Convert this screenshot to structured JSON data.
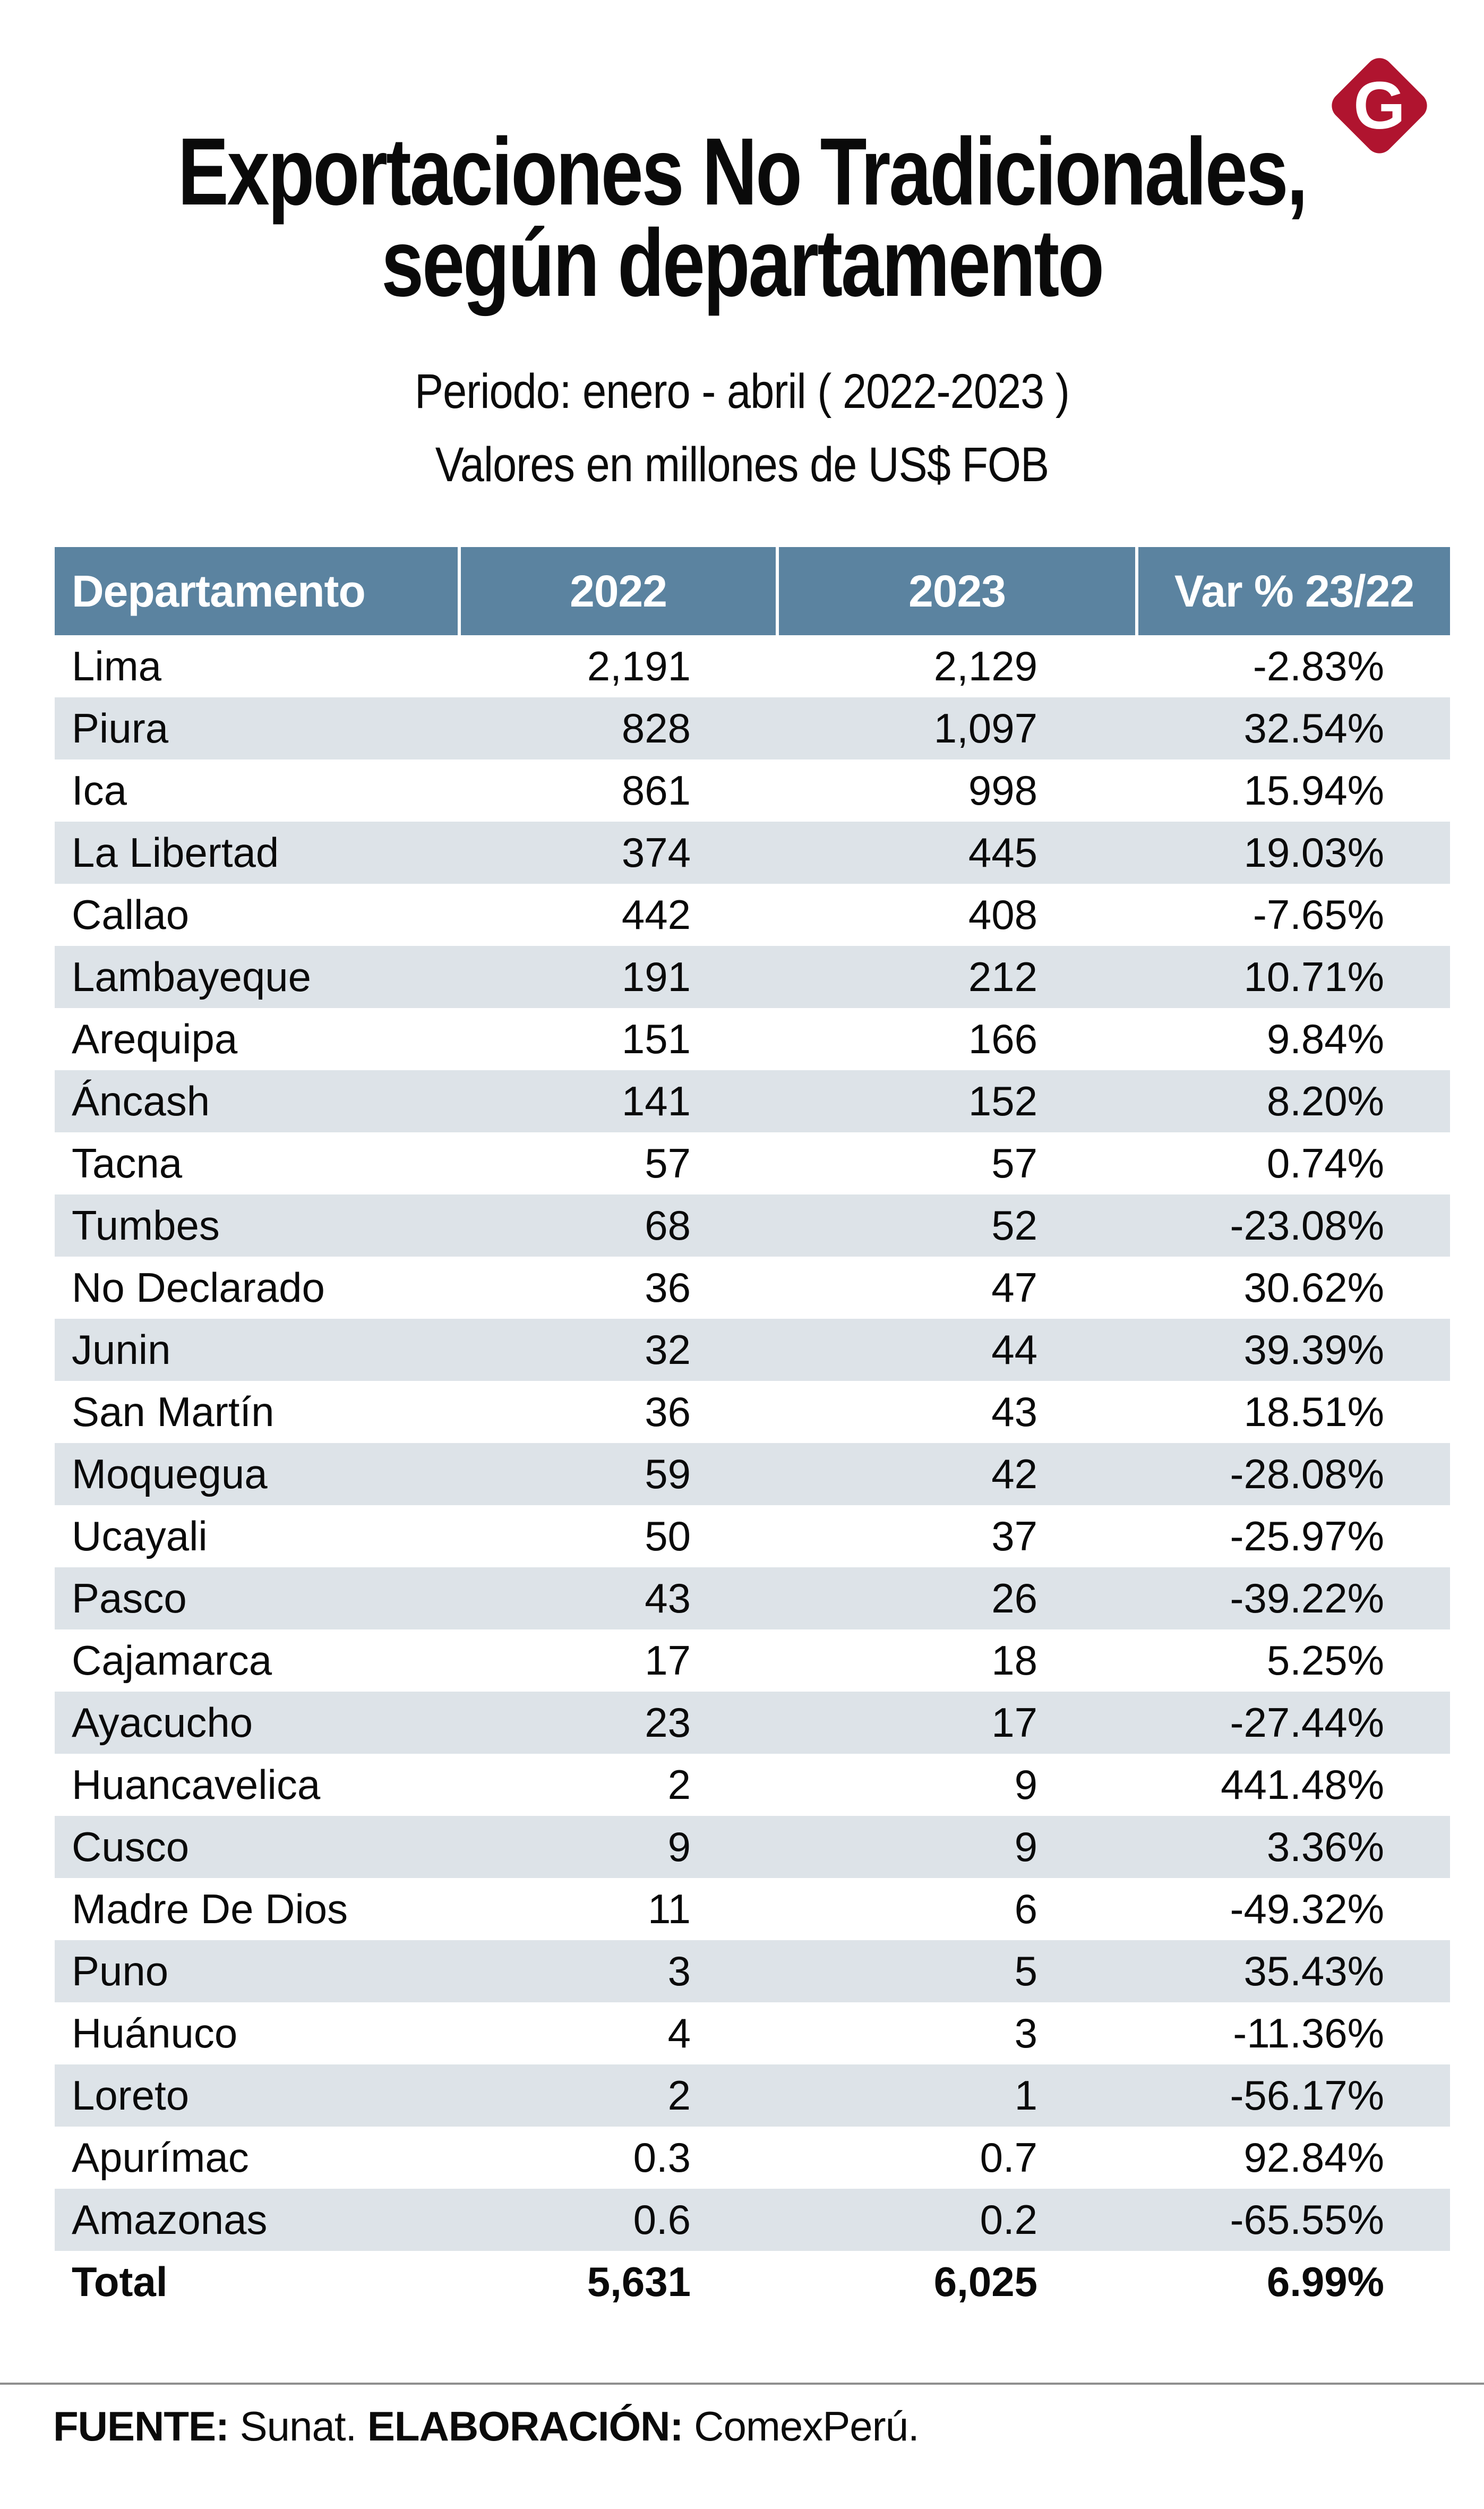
{
  "logo": {
    "letter": "G"
  },
  "title": {
    "line1": "Exportaciones No Tradicionales,",
    "line2": "según departamento"
  },
  "subtitle": {
    "line1": "Periodo: enero - abril ( 2022-2023 )",
    "line2": "Valores en millones de US$ FOB"
  },
  "colors": {
    "header_bg": "#5b83a0",
    "stripe": "#dde3e8",
    "logo_red": "#b0142f",
    "divider": "#8f8f8f"
  },
  "table": {
    "headers": [
      "Departamento",
      "2022",
      "2023",
      "Var % 23/22"
    ],
    "rows": [
      [
        "Lima",
        "2,191",
        "2,129",
        "-2.83%"
      ],
      [
        "Piura",
        "828",
        "1,097",
        "32.54%"
      ],
      [
        "Ica",
        "861",
        "998",
        "15.94%"
      ],
      [
        "La Libertad",
        "374",
        "445",
        "19.03%"
      ],
      [
        "Callao",
        "442",
        "408",
        "-7.65%"
      ],
      [
        "Lambayeque",
        "191",
        "212",
        "10.71%"
      ],
      [
        "Arequipa",
        "151",
        "166",
        "9.84%"
      ],
      [
        "Áncash",
        "141",
        "152",
        "8.20%"
      ],
      [
        "Tacna",
        "57",
        "57",
        "0.74%"
      ],
      [
        "Tumbes",
        "68",
        "52",
        "-23.08%"
      ],
      [
        "No Declarado",
        "36",
        "47",
        "30.62%"
      ],
      [
        "Junin",
        "32",
        "44",
        "39.39%"
      ],
      [
        "San Martín",
        "36",
        "43",
        "18.51%"
      ],
      [
        "Moquegua",
        "59",
        "42",
        "-28.08%"
      ],
      [
        "Ucayali",
        "50",
        "37",
        "-25.97%"
      ],
      [
        "Pasco",
        "43",
        "26",
        "-39.22%"
      ],
      [
        "Cajamarca",
        "17",
        "18",
        "5.25%"
      ],
      [
        "Ayacucho",
        "23",
        "17",
        "-27.44%"
      ],
      [
        "Huancavelica",
        "2",
        "9",
        "441.48%"
      ],
      [
        "Cusco",
        "9",
        "9",
        "3.36%"
      ],
      [
        "Madre De Dios",
        "11",
        "6",
        "-49.32%"
      ],
      [
        "Puno",
        "3",
        "5",
        "35.43%"
      ],
      [
        "Huánuco",
        "4",
        "3",
        "-11.36%"
      ],
      [
        "Loreto",
        "2",
        "1",
        "-56.17%"
      ],
      [
        "Apurímac",
        "0.3",
        "0.7",
        "92.84%"
      ],
      [
        "Amazonas",
        "0.6",
        "0.2",
        "-65.55%"
      ]
    ],
    "total_row": [
      "Total",
      "5,631",
      "6,025",
      "6.99%"
    ]
  },
  "footer": {
    "source_label": "FUENTE:",
    "source_value": " Sunat. ",
    "elaboration_label": "ELABORACIÓN:",
    "elaboration_value": " ComexPerú."
  },
  "chart_data": {
    "type": "table",
    "title": "Exportaciones No Tradicionales, según departamento",
    "subtitle": "Periodo: enero - abril (2022-2023)",
    "units": "millones de US$ FOB",
    "columns": [
      "Departamento",
      "2022",
      "2023",
      "Var % 23/22"
    ],
    "rows": [
      [
        "Lima",
        2191,
        2129,
        -2.83
      ],
      [
        "Piura",
        828,
        1097,
        32.54
      ],
      [
        "Ica",
        861,
        998,
        15.94
      ],
      [
        "La Libertad",
        374,
        445,
        19.03
      ],
      [
        "Callao",
        442,
        408,
        -7.65
      ],
      [
        "Lambayeque",
        191,
        212,
        10.71
      ],
      [
        "Arequipa",
        151,
        166,
        9.84
      ],
      [
        "Áncash",
        141,
        152,
        8.2
      ],
      [
        "Tacna",
        57,
        57,
        0.74
      ],
      [
        "Tumbes",
        68,
        52,
        -23.08
      ],
      [
        "No Declarado",
        36,
        47,
        30.62
      ],
      [
        "Junin",
        32,
        44,
        39.39
      ],
      [
        "San Martín",
        36,
        43,
        18.51
      ],
      [
        "Moquegua",
        59,
        42,
        -28.08
      ],
      [
        "Ucayali",
        50,
        37,
        -25.97
      ],
      [
        "Pasco",
        43,
        26,
        -39.22
      ],
      [
        "Cajamarca",
        17,
        18,
        5.25
      ],
      [
        "Ayacucho",
        23,
        17,
        -27.44
      ],
      [
        "Huancavelica",
        2,
        9,
        441.48
      ],
      [
        "Cusco",
        9,
        9,
        3.36
      ],
      [
        "Madre De Dios",
        11,
        6,
        -49.32
      ],
      [
        "Puno",
        3,
        5,
        35.43
      ],
      [
        "Huánuco",
        4,
        3,
        -11.36
      ],
      [
        "Loreto",
        2,
        1,
        -56.17
      ],
      [
        "Apurímac",
        0.3,
        0.7,
        92.84
      ],
      [
        "Amazonas",
        0.6,
        0.2,
        -65.55
      ]
    ],
    "total": [
      "Total",
      5631,
      6025,
      6.99
    ],
    "source": "Sunat",
    "elaboration": "ComexPerú"
  }
}
